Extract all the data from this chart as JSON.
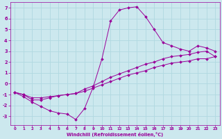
{
  "xlabel": "Windchill (Refroidissement éolien,°C)",
  "bg_color": "#cce8ee",
  "line_color": "#990099",
  "grid_color": "#b0d8e0",
  "xlim": [
    -0.5,
    23.5
  ],
  "ylim": [
    -3.8,
    7.5
  ],
  "xticks": [
    0,
    1,
    2,
    3,
    4,
    5,
    6,
    7,
    8,
    9,
    10,
    11,
    12,
    13,
    14,
    15,
    16,
    17,
    18,
    19,
    20,
    21,
    22,
    23
  ],
  "yticks": [
    -3,
    -2,
    -1,
    0,
    1,
    2,
    3,
    4,
    5,
    6,
    7
  ],
  "curve1_x": [
    0,
    1,
    2,
    3,
    4,
    5,
    6,
    7,
    8,
    9,
    10,
    11,
    12,
    13,
    14,
    15,
    16,
    17,
    18,
    19,
    20,
    21,
    22,
    23
  ],
  "curve1_y": [
    -0.8,
    -1.2,
    -1.7,
    -2.1,
    -2.5,
    -2.7,
    -2.8,
    -3.3,
    -2.3,
    -0.3,
    2.3,
    5.8,
    6.8,
    7.0,
    7.1,
    6.2,
    5.0,
    3.8,
    3.5,
    3.2,
    3.0,
    3.5,
    3.3,
    3.0
  ],
  "curve2_x": [
    0,
    1,
    2,
    3,
    4,
    5,
    6,
    7,
    8,
    9,
    10,
    11,
    12,
    13,
    14,
    15,
    16,
    17,
    18,
    19,
    20,
    21,
    22,
    23
  ],
  "curve2_y": [
    -0.8,
    -1.0,
    -1.5,
    -1.5,
    -1.3,
    -1.1,
    -1.0,
    -0.9,
    -0.5,
    -0.2,
    0.2,
    0.6,
    0.9,
    1.2,
    1.5,
    1.8,
    2.0,
    2.3,
    2.5,
    2.6,
    2.7,
    2.9,
    3.0,
    2.5
  ],
  "curve3_x": [
    0,
    1,
    2,
    3,
    4,
    5,
    6,
    7,
    8,
    9,
    10,
    11,
    12,
    13,
    14,
    15,
    16,
    17,
    18,
    19,
    20,
    21,
    22,
    23
  ],
  "curve3_y": [
    -0.8,
    -1.0,
    -1.3,
    -1.3,
    -1.2,
    -1.1,
    -1.0,
    -0.9,
    -0.7,
    -0.4,
    -0.1,
    0.2,
    0.5,
    0.8,
    1.0,
    1.2,
    1.5,
    1.7,
    1.9,
    2.0,
    2.1,
    2.3,
    2.3,
    2.5
  ]
}
